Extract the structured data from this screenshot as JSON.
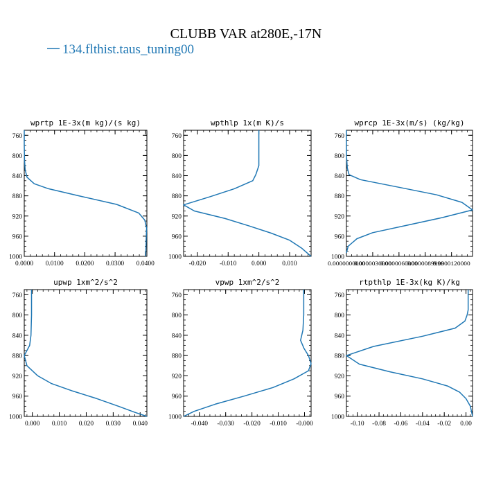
{
  "title": "CLUBB VAR at280E,-17N",
  "legend": {
    "label": "134.flthist.taus_tuning00",
    "color": "#1f77b4"
  },
  "chart_data": [
    {
      "type": "line",
      "title": "wprtp  1E-3x(m kg)/(s kg)",
      "xlim": [
        0.0,
        0.0405
      ],
      "ylim": [
        1000,
        750
      ],
      "xticks": [
        "0.0000",
        "0.0100",
        "0.0200",
        "0.0300",
        "0.0400"
      ],
      "xtick_values": [
        0.0,
        0.01,
        0.02,
        0.03,
        0.04
      ],
      "yticks": [
        760,
        800,
        840,
        880,
        920,
        960,
        1000
      ],
      "series": [
        {
          "x": [
            0.0,
            0.0,
            0.0001,
            0.0003,
            0.0009,
            0.0033,
            0.008,
            0.018,
            0.0305,
            0.0378,
            0.0398,
            0.0404,
            0.0403,
            0.0402,
            0.0401
          ],
          "y": [
            750,
            780,
            810,
            828,
            843,
            856,
            866,
            880,
            897,
            914,
            928,
            944,
            960,
            980,
            1000
          ]
        }
      ]
    },
    {
      "type": "line",
      "title": "wpthlp  1x(m K)/s",
      "xlim": [
        -0.0245,
        0.017
      ],
      "ylim": [
        1000,
        750
      ],
      "xticks": [
        "-0.020",
        "-0.010",
        "0.000",
        "0.010"
      ],
      "xtick_values": [
        -0.02,
        -0.01,
        0.0,
        0.01
      ],
      "yticks": [
        760,
        800,
        840,
        880,
        920,
        960,
        1000
      ],
      "series": [
        {
          "x": [
            0.0,
            0.0,
            0.0,
            -0.001,
            -0.002,
            -0.008,
            -0.016,
            -0.0245,
            -0.021,
            -0.011,
            -0.003,
            0.004,
            0.01,
            0.014,
            0.017
          ],
          "y": [
            750,
            790,
            820,
            838,
            850,
            866,
            882,
            898,
            910,
            925,
            940,
            954,
            968,
            984,
            1000
          ]
        }
      ]
    },
    {
      "type": "line",
      "title": "wprcp  1E-3x(m/s) (kg/kg)",
      "xlim": [
        0.0,
        1.44e-05
      ],
      "ylim": [
        1000,
        750
      ],
      "xticks": [
        "0.0000000000",
        "0.0000030000",
        "0.0000060000",
        "0.0000089999",
        "0.0000120000"
      ],
      "xtick_values": [
        0.0,
        3e-06,
        6e-06,
        8.9999e-06,
        1.2e-05
      ],
      "yticks": [
        760,
        800,
        840,
        880,
        920,
        960,
        1000
      ],
      "series": [
        {
          "x": [
            0.0,
            0.0,
            1e-07,
            3e-07,
            1.6e-06,
            6e-06,
            1.03e-05,
            1.32e-05,
            1.44e-05,
            1.1e-05,
            7e-06,
            3e-06,
            1.2e-06,
            2e-07,
            0.0
          ],
          "y": [
            750,
            800,
            825,
            838,
            848,
            863,
            878,
            893,
            908,
            923,
            938,
            953,
            965,
            980,
            993
          ]
        }
      ]
    },
    {
      "type": "line",
      "title": "upwp  1xm^2/s^2",
      "xlim": [
        -0.003,
        0.0425
      ],
      "ylim": [
        1000,
        750
      ],
      "xticks": [
        "0.000",
        "0.010",
        "0.020",
        "0.030",
        "0.040"
      ],
      "xtick_values": [
        0.0,
        0.01,
        0.02,
        0.03,
        0.04
      ],
      "yticks": [
        760,
        800,
        840,
        880,
        920,
        960,
        1000
      ],
      "series": [
        {
          "x": [
            -0.0003,
            -0.0003,
            -0.0005,
            -0.001,
            -0.003,
            -0.002,
            0.002,
            0.007,
            0.015,
            0.024,
            0.032,
            0.038,
            0.0425
          ],
          "y": [
            750,
            800,
            840,
            860,
            880,
            900,
            920,
            935,
            950,
            965,
            980,
            992,
            1000
          ]
        }
      ]
    },
    {
      "type": "line",
      "title": "vpwp  1xm^2/s^2",
      "xlim": [
        -0.046,
        0.0025
      ],
      "ylim": [
        1000,
        750
      ],
      "xticks": [
        "-0.040",
        "-0.030",
        "-0.020",
        "-0.010",
        "-0.000"
      ],
      "xtick_values": [
        -0.04,
        -0.03,
        -0.02,
        -0.01,
        0.0
      ],
      "yticks": [
        760,
        800,
        840,
        880,
        920,
        960,
        1000
      ],
      "series": [
        {
          "x": [
            -0.0003,
            -0.0003,
            -0.0006,
            -0.0015,
            -0.0002,
            0.0015,
            0.0025,
            0.0015,
            -0.004,
            -0.012,
            -0.023,
            -0.034,
            -0.042,
            -0.046
          ],
          "y": [
            750,
            800,
            830,
            850,
            866,
            880,
            896,
            910,
            926,
            943,
            960,
            976,
            990,
            1000
          ]
        }
      ]
    },
    {
      "type": "line",
      "title": "rtpthlp  1E-3x(kg K)/kg",
      "xlim": [
        -0.11,
        0.006
      ],
      "ylim": [
        1000,
        750
      ],
      "xticks": [
        "-0.10",
        "-0.08",
        "-0.06",
        "-0.04",
        "-0.02",
        "0.00"
      ],
      "xtick_values": [
        -0.1,
        -0.08,
        -0.06,
        -0.04,
        -0.02,
        0.0
      ],
      "yticks": [
        760,
        800,
        840,
        880,
        920,
        960,
        1000
      ],
      "series": [
        {
          "x": [
            0.002,
            0.002,
            0.001,
            -0.001,
            -0.01,
            -0.04,
            -0.085,
            -0.11,
            -0.098,
            -0.07,
            -0.04,
            -0.017,
            -0.006,
            0.0,
            0.004,
            0.006
          ],
          "y": [
            750,
            790,
            800,
            812,
            826,
            842,
            862,
            880,
            897,
            912,
            926,
            940,
            952,
            965,
            980,
            1000
          ]
        }
      ]
    }
  ]
}
